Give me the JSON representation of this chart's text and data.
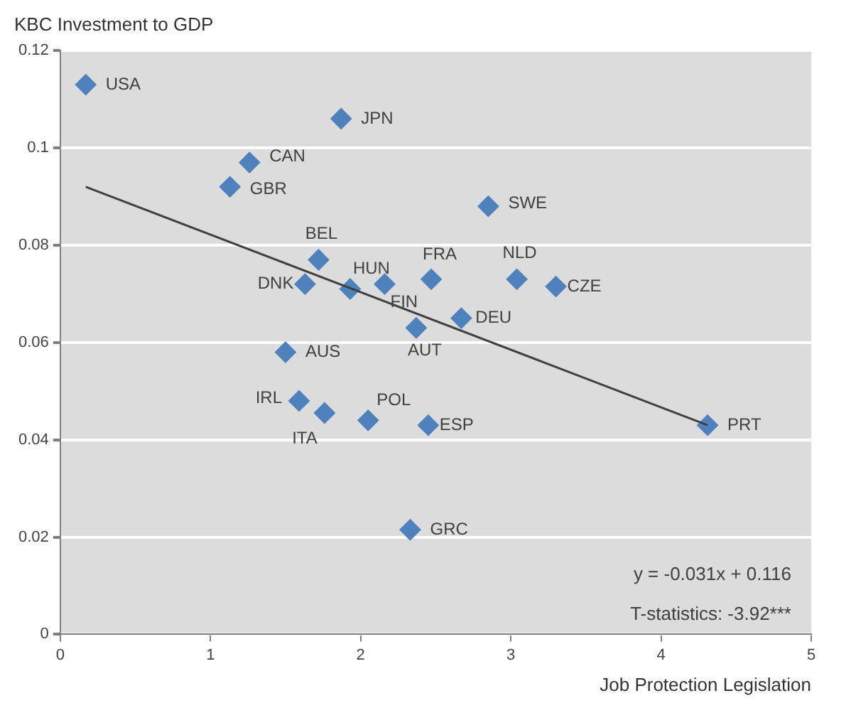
{
  "chart_data": {
    "type": "scatter",
    "title": "KBC Investment to GDP",
    "xlabel": "Job Protection Legislation",
    "xlim": [
      0,
      5
    ],
    "xticks": [
      0,
      1,
      2,
      3,
      4,
      5
    ],
    "ylim": [
      0,
      0.12
    ],
    "yticks": [
      0,
      0.02,
      0.04,
      0.06,
      0.08,
      0.1,
      0.12
    ],
    "grid": "y",
    "legend": false,
    "marker": "diamond",
    "series": [
      {
        "color": "#4f81bd",
        "x": [
          0.17,
          1.87,
          1.26,
          1.13,
          2.85,
          1.72,
          1.93,
          1.63,
          2.16,
          2.47,
          3.04,
          3.3,
          2.67,
          2.37,
          1.5,
          1.59,
          1.76,
          2.05,
          2.45,
          2.33,
          4.31
        ],
        "values": [
          0.113,
          0.106,
          0.097,
          0.092,
          0.088,
          0.077,
          0.071,
          0.072,
          0.072,
          0.073,
          0.073,
          0.0715,
          0.065,
          0.063,
          0.058,
          0.048,
          0.0455,
          0.044,
          0.043,
          0.0215,
          0.043
        ]
      },
      {
        "type": "line",
        "marker": "none",
        "color": "#404040",
        "x": [
          0.17,
          4.31
        ],
        "values": [
          0.092,
          0.043
        ]
      }
    ],
    "annotations": [
      {
        "text": "USA",
        "x": 0.17,
        "y": 0.113
      },
      {
        "text": "JPN",
        "x": 1.87,
        "y": 0.106
      },
      {
        "text": "CAN",
        "x": 1.26,
        "y": 0.097
      },
      {
        "text": "GBR",
        "x": 1.13,
        "y": 0.092
      },
      {
        "text": "SWE",
        "x": 2.85,
        "y": 0.088
      },
      {
        "text": "BEL",
        "x": 1.72,
        "y": 0.077
      },
      {
        "text": "HUN",
        "x": 1.93,
        "y": 0.071
      },
      {
        "text": "DNK",
        "x": 1.63,
        "y": 0.072
      },
      {
        "text": "FIN",
        "x": 2.16,
        "y": 0.072
      },
      {
        "text": "FRA",
        "x": 2.47,
        "y": 0.073
      },
      {
        "text": "NLD",
        "x": 3.04,
        "y": 0.073
      },
      {
        "text": "CZE",
        "x": 3.3,
        "y": 0.0715
      },
      {
        "text": "DEU",
        "x": 2.67,
        "y": 0.065
      },
      {
        "text": "AUT",
        "x": 2.37,
        "y": 0.063
      },
      {
        "text": "AUS",
        "x": 1.5,
        "y": 0.058
      },
      {
        "text": "IRL",
        "x": 1.59,
        "y": 0.048
      },
      {
        "text": "ITA",
        "x": 1.76,
        "y": 0.0455
      },
      {
        "text": "POL",
        "x": 2.05,
        "y": 0.044
      },
      {
        "text": "ESP",
        "x": 2.45,
        "y": 0.043
      },
      {
        "text": "GRC",
        "x": 2.33,
        "y": 0.0215
      },
      {
        "text": "PRT",
        "x": 4.31,
        "y": 0.043
      },
      "y = -0.031x + 0.116",
      "T-statistics: -3.92***"
    ]
  }
}
